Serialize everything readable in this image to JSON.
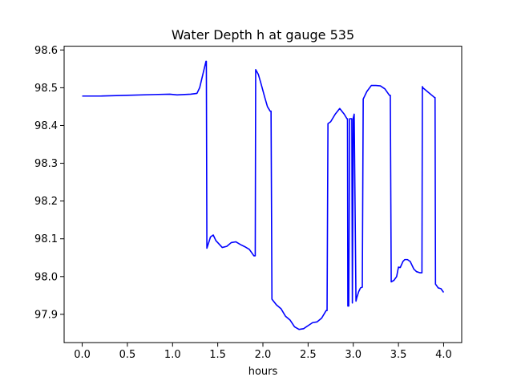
{
  "chart_data": {
    "type": "line",
    "title": "Water Depth h at gauge 535",
    "xlabel": "hours",
    "ylabel": "",
    "xlim": [
      -0.2,
      4.2
    ],
    "ylim": [
      97.825,
      98.61
    ],
    "xticks": [
      0.0,
      0.5,
      1.0,
      1.5,
      2.0,
      2.5,
      3.0,
      3.5,
      4.0
    ],
    "xtick_labels": [
      "0.0",
      "0.5",
      "1.0",
      "1.5",
      "2.0",
      "2.5",
      "3.0",
      "3.5",
      "4.0"
    ],
    "yticks": [
      97.9,
      98.0,
      98.1,
      98.2,
      98.3,
      98.4,
      98.5,
      98.6
    ],
    "ytick_labels": [
      "97.9",
      "98.0",
      "98.1",
      "98.2",
      "98.3",
      "98.4",
      "98.5",
      "98.6"
    ],
    "grid": false,
    "series": [
      {
        "color": "#0000ff",
        "x": [
          0.0,
          0.2,
          0.5,
          0.8,
          0.97,
          1.05,
          1.2,
          1.27,
          1.3,
          1.37,
          1.374,
          1.38,
          1.42,
          1.45,
          1.48,
          1.5,
          1.55,
          1.6,
          1.65,
          1.7,
          1.75,
          1.8,
          1.85,
          1.9,
          1.915,
          1.92,
          1.95,
          1.98,
          2.02,
          2.05,
          2.08,
          2.09,
          2.1,
          2.15,
          2.2,
          2.25,
          2.3,
          2.35,
          2.4,
          2.45,
          2.5,
          2.55,
          2.6,
          2.65,
          2.7,
          2.71,
          2.72,
          2.75,
          2.8,
          2.85,
          2.9,
          2.93,
          2.936,
          2.94,
          2.95,
          2.96,
          2.98,
          2.984,
          2.99,
          3.0,
          3.005,
          3.01,
          3.03,
          3.04,
          3.06,
          3.08,
          3.1,
          3.11,
          3.12,
          3.15,
          3.2,
          3.25,
          3.3,
          3.35,
          3.4,
          3.41,
          3.42,
          3.45,
          3.48,
          3.5,
          3.52,
          3.55,
          3.57,
          3.6,
          3.63,
          3.65,
          3.67,
          3.7,
          3.74,
          3.76,
          3.765,
          3.77,
          3.82,
          3.87,
          3.9,
          3.905,
          3.91,
          3.94,
          3.97,
          4.0
        ],
        "y": [
          98.478,
          98.478,
          98.48,
          98.482,
          98.483,
          98.481,
          98.483,
          98.485,
          98.5,
          98.57,
          98.57,
          98.075,
          98.105,
          98.11,
          98.095,
          98.09,
          98.077,
          98.08,
          98.09,
          98.092,
          98.085,
          98.079,
          98.072,
          98.055,
          98.055,
          98.548,
          98.535,
          98.51,
          98.475,
          98.45,
          98.438,
          98.438,
          97.94,
          97.925,
          97.915,
          97.895,
          97.885,
          97.867,
          97.86,
          97.862,
          97.87,
          97.878,
          97.88,
          97.89,
          97.91,
          97.91,
          98.405,
          98.41,
          98.43,
          98.445,
          98.43,
          98.418,
          98.418,
          97.922,
          97.922,
          98.418,
          98.418,
          98.418,
          97.93,
          98.42,
          98.425,
          98.43,
          97.935,
          97.945,
          97.96,
          97.97,
          97.972,
          98.47,
          98.475,
          98.49,
          98.506,
          98.506,
          98.505,
          98.497,
          98.48,
          98.48,
          97.986,
          97.99,
          98.0,
          98.025,
          98.024,
          98.04,
          98.045,
          98.045,
          98.04,
          98.03,
          98.02,
          98.013,
          98.01,
          98.01,
          98.503,
          98.5,
          98.49,
          98.48,
          98.474,
          98.474,
          97.98,
          97.97,
          97.968,
          97.958
        ]
      }
    ]
  }
}
